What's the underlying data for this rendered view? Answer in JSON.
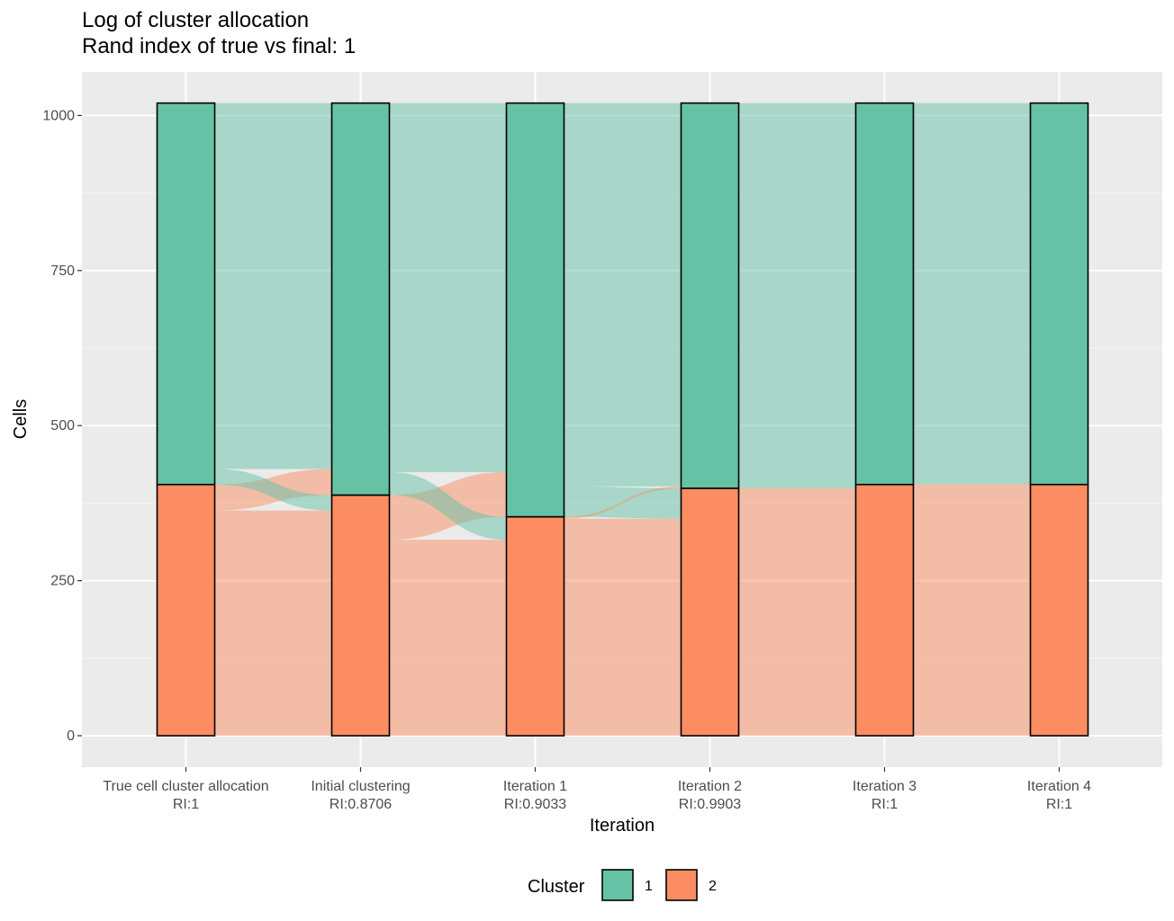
{
  "chart_data": {
    "type": "alluvial",
    "title": "Log of cluster allocation",
    "subtitle": "Rand index of true vs final: 1",
    "xlabel": "Iteration",
    "ylabel": "Cells",
    "ylim": [
      -50,
      1050
    ],
    "yticks": [
      0,
      250,
      500,
      750,
      1000
    ],
    "grid": true,
    "legend_position": "bottom",
    "legend_title": "Cluster",
    "clusters": [
      {
        "name": "1",
        "color": "#66c2a5"
      },
      {
        "name": "2",
        "color": "#fc8d62"
      }
    ],
    "categories": [
      {
        "label": "True cell cluster allocation",
        "ri": "RI:1"
      },
      {
        "label": "Initial clustering",
        "ri": "RI:0.8706"
      },
      {
        "label": "Iteration 1",
        "ri": "RI:0.9033"
      },
      {
        "label": "Iteration 2",
        "ri": "RI:0.9903"
      },
      {
        "label": "Iteration 3",
        "ri": "RI:1"
      },
      {
        "label": "Iteration 4",
        "ri": "RI:1"
      }
    ],
    "series": [
      {
        "name": "1",
        "values": [
          615,
          632,
          667,
          621,
          615,
          615
        ]
      },
      {
        "name": "2",
        "values": [
          405,
          388,
          353,
          399,
          405,
          405
        ]
      }
    ],
    "flows": [
      [
        {
          "from": 1,
          "to": 1,
          "value": 590
        },
        {
          "from": 1,
          "to": 2,
          "value": 25
        },
        {
          "from": 2,
          "to": 1,
          "value": 42
        },
        {
          "from": 2,
          "to": 2,
          "value": 363
        }
      ],
      [
        {
          "from": 1,
          "to": 1,
          "value": 595
        },
        {
          "from": 1,
          "to": 2,
          "value": 37
        },
        {
          "from": 2,
          "to": 1,
          "value": 72
        },
        {
          "from": 2,
          "to": 2,
          "value": 316
        }
      ],
      [
        {
          "from": 1,
          "to": 1,
          "value": 618
        },
        {
          "from": 1,
          "to": 2,
          "value": 49
        },
        {
          "from": 2,
          "to": 1,
          "value": 3
        },
        {
          "from": 2,
          "to": 2,
          "value": 350
        }
      ],
      [
        {
          "from": 1,
          "to": 1,
          "value": 615
        },
        {
          "from": 1,
          "to": 2,
          "value": 6
        },
        {
          "from": 2,
          "to": 1,
          "value": 0
        },
        {
          "from": 2,
          "to": 2,
          "value": 399
        }
      ],
      [
        {
          "from": 1,
          "to": 1,
          "value": 615
        },
        {
          "from": 1,
          "to": 2,
          "value": 0
        },
        {
          "from": 2,
          "to": 1,
          "value": 0
        },
        {
          "from": 2,
          "to": 2,
          "value": 405
        }
      ]
    ]
  }
}
